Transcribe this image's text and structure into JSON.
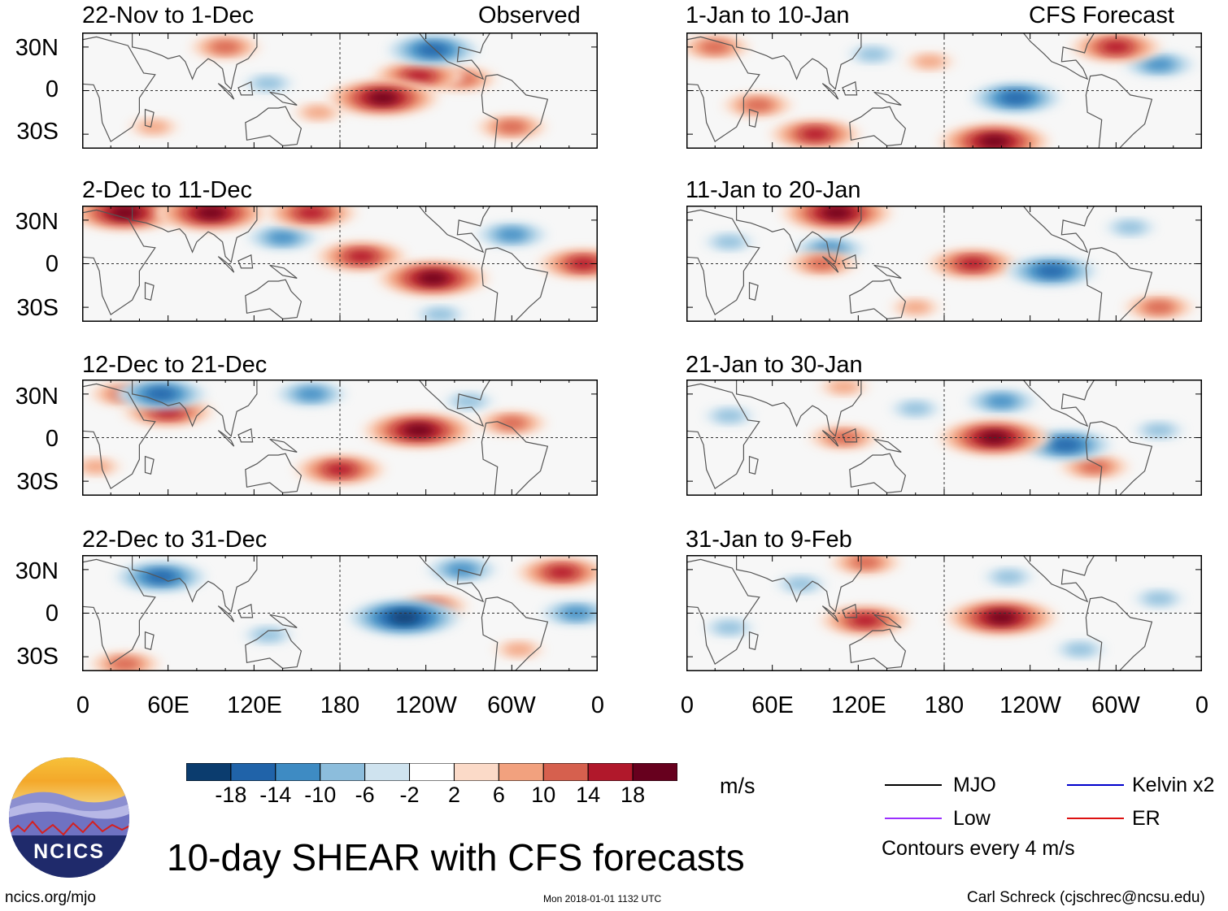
{
  "left_header": {
    "status": "Observed"
  },
  "right_header": {
    "status": "CFS Forecast"
  },
  "y_labels": [
    "30N",
    "0",
    "30S"
  ],
  "x_labels": [
    "0",
    "60E",
    "120E",
    "180",
    "120W",
    "60W",
    "0"
  ],
  "chart_data": [
    {
      "type": "heatmap",
      "title": "22-Nov to 1-Dec",
      "group": "Observed",
      "xlim": [
        0,
        360
      ],
      "ylim": [
        -40,
        40
      ],
      "anomalies": [
        {
          "lon": 210,
          "lat": -5,
          "value": 18
        },
        {
          "lon": 235,
          "lat": 10,
          "value": 14
        },
        {
          "lon": 265,
          "lat": 8,
          "value": 10
        },
        {
          "lon": 245,
          "lat": 28,
          "value": -14
        },
        {
          "lon": 165,
          "lat": -15,
          "value": 6
        },
        {
          "lon": 50,
          "lat": -25,
          "value": 6
        },
        {
          "lon": 300,
          "lat": -25,
          "value": 10
        },
        {
          "lon": 100,
          "lat": 30,
          "value": 10
        },
        {
          "lon": 130,
          "lat": 5,
          "value": -6
        }
      ]
    },
    {
      "type": "heatmap",
      "title": "2-Dec to 11-Dec",
      "group": "Observed",
      "xlim": [
        0,
        360
      ],
      "ylim": [
        -40,
        40
      ],
      "anomalies": [
        {
          "lon": 195,
          "lat": 5,
          "value": 14
        },
        {
          "lon": 245,
          "lat": -10,
          "value": 18
        },
        {
          "lon": 30,
          "lat": 35,
          "value": 18
        },
        {
          "lon": 90,
          "lat": 35,
          "value": 18
        },
        {
          "lon": 160,
          "lat": 35,
          "value": 14
        },
        {
          "lon": 140,
          "lat": 18,
          "value": -10
        },
        {
          "lon": 350,
          "lat": 0,
          "value": 14
        },
        {
          "lon": 300,
          "lat": 20,
          "value": -10
        },
        {
          "lon": 250,
          "lat": -35,
          "value": -6
        }
      ]
    },
    {
      "type": "heatmap",
      "title": "12-Dec to 21-Dec",
      "group": "Observed",
      "xlim": [
        0,
        360
      ],
      "ylim": [
        -40,
        40
      ],
      "anomalies": [
        {
          "lon": 235,
          "lat": 5,
          "value": 18
        },
        {
          "lon": 180,
          "lat": -22,
          "value": 14
        },
        {
          "lon": 60,
          "lat": 18,
          "value": 14
        },
        {
          "lon": 30,
          "lat": 30,
          "value": 10
        },
        {
          "lon": 55,
          "lat": 30,
          "value": -14
        },
        {
          "lon": 160,
          "lat": 30,
          "value": -10
        },
        {
          "lon": 300,
          "lat": 10,
          "value": 10
        },
        {
          "lon": 10,
          "lat": -20,
          "value": 6
        },
        {
          "lon": 270,
          "lat": 25,
          "value": -6
        }
      ]
    },
    {
      "type": "heatmap",
      "title": "22-Dec to 31-Dec",
      "group": "Observed",
      "xlim": [
        0,
        360
      ],
      "ylim": [
        -40,
        40
      ],
      "anomalies": [
        {
          "lon": 225,
          "lat": -3,
          "value": -18
        },
        {
          "lon": 335,
          "lat": 28,
          "value": 14
        },
        {
          "lon": 265,
          "lat": 30,
          "value": -10
        },
        {
          "lon": 55,
          "lat": 25,
          "value": -14
        },
        {
          "lon": 345,
          "lat": 0,
          "value": -10
        },
        {
          "lon": 245,
          "lat": 5,
          "value": 10
        },
        {
          "lon": 30,
          "lat": -35,
          "value": 10
        },
        {
          "lon": 130,
          "lat": -15,
          "value": -6
        },
        {
          "lon": 305,
          "lat": -25,
          "value": 6
        }
      ]
    },
    {
      "type": "heatmap",
      "title": "1-Jan to 10-Jan",
      "group": "CFS Forecast",
      "xlim": [
        0,
        360
      ],
      "ylim": [
        -40,
        40
      ],
      "anomalies": [
        {
          "lon": 215,
          "lat": -35,
          "value": 18
        },
        {
          "lon": 50,
          "lat": -10,
          "value": 10
        },
        {
          "lon": 90,
          "lat": -30,
          "value": 14
        },
        {
          "lon": 230,
          "lat": -5,
          "value": -14
        },
        {
          "lon": 300,
          "lat": 30,
          "value": 14
        },
        {
          "lon": 330,
          "lat": 18,
          "value": -10
        },
        {
          "lon": 170,
          "lat": 20,
          "value": 6
        },
        {
          "lon": 20,
          "lat": 30,
          "value": 10
        },
        {
          "lon": 130,
          "lat": 25,
          "value": -6
        }
      ]
    },
    {
      "type": "heatmap",
      "title": "11-Jan to 20-Jan",
      "group": "CFS Forecast",
      "xlim": [
        0,
        360
      ],
      "ylim": [
        -40,
        40
      ],
      "anomalies": [
        {
          "lon": 200,
          "lat": 0,
          "value": 14
        },
        {
          "lon": 105,
          "lat": 35,
          "value": 18
        },
        {
          "lon": 100,
          "lat": 10,
          "value": -10
        },
        {
          "lon": 255,
          "lat": -5,
          "value": -14
        },
        {
          "lon": 95,
          "lat": 0,
          "value": 10
        },
        {
          "lon": 330,
          "lat": -30,
          "value": 10
        },
        {
          "lon": 310,
          "lat": 25,
          "value": -6
        },
        {
          "lon": 160,
          "lat": -30,
          "value": 6
        },
        {
          "lon": 30,
          "lat": 15,
          "value": -6
        }
      ]
    },
    {
      "type": "heatmap",
      "title": "21-Jan to 30-Jan",
      "group": "CFS Forecast",
      "xlim": [
        0,
        360
      ],
      "ylim": [
        -40,
        40
      ],
      "anomalies": [
        {
          "lon": 215,
          "lat": 0,
          "value": 18
        },
        {
          "lon": 220,
          "lat": 25,
          "value": -10
        },
        {
          "lon": 265,
          "lat": -5,
          "value": -14
        },
        {
          "lon": 110,
          "lat": 0,
          "value": 10
        },
        {
          "lon": 285,
          "lat": -20,
          "value": 10
        },
        {
          "lon": 30,
          "lat": 15,
          "value": -6
        },
        {
          "lon": 160,
          "lat": 20,
          "value": -6
        },
        {
          "lon": 110,
          "lat": 35,
          "value": 6
        },
        {
          "lon": 330,
          "lat": 5,
          "value": -6
        }
      ]
    },
    {
      "type": "heatmap",
      "title": "31-Jan to 9-Feb",
      "group": "CFS Forecast",
      "xlim": [
        0,
        360
      ],
      "ylim": [
        -40,
        40
      ],
      "anomalies": [
        {
          "lon": 220,
          "lat": -3,
          "value": 18
        },
        {
          "lon": 125,
          "lat": -5,
          "value": 14
        },
        {
          "lon": 80,
          "lat": 20,
          "value": -6
        },
        {
          "lon": 225,
          "lat": 25,
          "value": -6
        },
        {
          "lon": 275,
          "lat": -25,
          "value": -6
        },
        {
          "lon": 125,
          "lat": 35,
          "value": 10
        },
        {
          "lon": 30,
          "lat": -10,
          "value": -6
        },
        {
          "lon": 330,
          "lat": 10,
          "value": -6
        }
      ]
    }
  ],
  "colorbar": {
    "ticks": [
      "-18",
      "-14",
      "-10",
      "-6",
      "-2",
      "2",
      "6",
      "10",
      "14",
      "18"
    ],
    "colors": [
      "#0b3c6e",
      "#2063a9",
      "#3e8bc3",
      "#8cbddc",
      "#cfe3ef",
      "#ffffff",
      "#fbdac8",
      "#f2a17e",
      "#d6604e",
      "#b1182b",
      "#67001e"
    ],
    "unit": "m/s"
  },
  "legend": {
    "mjo": "MJO",
    "low": "Low",
    "kelvin": "Kelvin x2",
    "er": "ER",
    "contours": "Contours every 4 m/s",
    "colors": {
      "mjo": "#000000",
      "low": "#9b30ff",
      "kelvin": "#0000cc",
      "er": "#dd1111"
    }
  },
  "footer": {
    "logo_text": "NCICS",
    "main_title": "10-day SHEAR with CFS forecasts",
    "url": "ncics.org/mjo",
    "timestamp": "Mon 2018-01-01 1132 UTC",
    "author": "Carl Schreck (cjschrec@ncsu.edu)"
  }
}
